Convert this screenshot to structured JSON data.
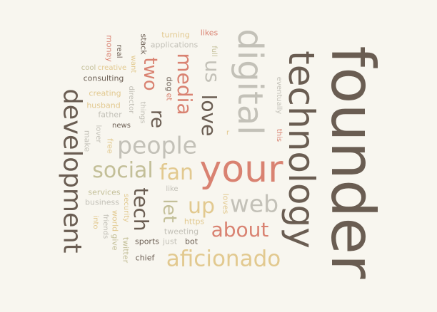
{
  "palette": {
    "background": "#f8f6ef",
    "dark": "#6a5d52",
    "brown": "#8a7d70",
    "grey": "#c3c1b8",
    "salmon": "#d98271",
    "gold": "#e2c98f",
    "olive": "#c3bf98"
  },
  "words": [
    {
      "id": "founder",
      "text": "founder",
      "color": "#6a5d52"
    },
    {
      "id": "technology",
      "text": "technology",
      "color": "#6a5d52"
    },
    {
      "id": "digital",
      "text": "digital",
      "color": "#c3c1b8"
    },
    {
      "id": "development",
      "text": "development",
      "color": "#6a5d52"
    },
    {
      "id": "your",
      "text": "your",
      "color": "#d98271"
    },
    {
      "id": "aficionado",
      "text": "aficionado",
      "color": "#e2c98f"
    },
    {
      "id": "people",
      "text": "people",
      "color": "#c3c1b8"
    },
    {
      "id": "social",
      "text": "social",
      "color": "#c3bf98"
    },
    {
      "id": "fan",
      "text": "fan",
      "color": "#e2c98f"
    },
    {
      "id": "web",
      "text": "web",
      "color": "#c3c1b8"
    },
    {
      "id": "about",
      "text": "about",
      "color": "#d98271"
    },
    {
      "id": "up",
      "text": "up",
      "color": "#e2c98f"
    },
    {
      "id": "tech",
      "text": "tech",
      "color": "#6a5d52"
    },
    {
      "id": "let",
      "text": "let",
      "color": "#c3bf98"
    },
    {
      "id": "media",
      "text": "media",
      "color": "#d98271"
    },
    {
      "id": "two",
      "text": "two",
      "color": "#d98271"
    },
    {
      "id": "re",
      "text": "re",
      "color": "#6a5d52"
    },
    {
      "id": "love",
      "text": "love",
      "color": "#6a5d52"
    },
    {
      "id": "us",
      "text": "us",
      "color": "#c3c1b8"
    },
    {
      "id": "turning",
      "text": "turning",
      "color": "#e2c98f"
    },
    {
      "id": "likes",
      "text": "likes",
      "color": "#d98271"
    },
    {
      "id": "applications",
      "text": "applications",
      "color": "#c3c1b8"
    },
    {
      "id": "full",
      "text": "full",
      "color": "#c3bf98"
    },
    {
      "id": "stack",
      "text": "stack",
      "color": "#6a5d52"
    },
    {
      "id": "real",
      "text": "real",
      "color": "#6a5d52"
    },
    {
      "id": "want",
      "text": "want",
      "color": "#e2c98f"
    },
    {
      "id": "money",
      "text": "money",
      "color": "#d98271"
    },
    {
      "id": "creative",
      "text": "creative",
      "color": "#e2c98f"
    },
    {
      "id": "cool",
      "text": "cool",
      "color": "#c3bf98"
    },
    {
      "id": "consulting",
      "text": "consulting",
      "color": "#6a5d52"
    },
    {
      "id": "creating",
      "text": "creating",
      "color": "#e2c98f"
    },
    {
      "id": "director",
      "text": "director",
      "color": "#c3c1b8"
    },
    {
      "id": "things",
      "text": "things",
      "color": "#c3c1b8"
    },
    {
      "id": "dog",
      "text": "dog",
      "color": "#6a5d52"
    },
    {
      "id": "et",
      "text": "et",
      "color": "#d98271"
    },
    {
      "id": "husband",
      "text": "husband",
      "color": "#e2c98f"
    },
    {
      "id": "father",
      "text": "father",
      "color": "#c3c1b8"
    },
    {
      "id": "news",
      "text": "news",
      "color": "#6a5d52"
    },
    {
      "id": "lover",
      "text": "lover",
      "color": "#c3c1b8"
    },
    {
      "id": "make",
      "text": "make",
      "color": "#c3c1b8"
    },
    {
      "id": "free",
      "text": "free",
      "color": "#e2c98f"
    },
    {
      "id": "eventually",
      "text": "eventually",
      "color": "#c3c1b8"
    },
    {
      "id": "this",
      "text": "this",
      "color": "#d98271"
    },
    {
      "id": "r",
      "text": "r",
      "color": "#e2c98f"
    },
    {
      "id": "like",
      "text": "like",
      "color": "#c3c1b8"
    },
    {
      "id": "services",
      "text": "services",
      "color": "#c3bf98"
    },
    {
      "id": "business",
      "text": "business",
      "color": "#c3c1b8"
    },
    {
      "id": "security",
      "text": "security",
      "color": "#e2c98f"
    },
    {
      "id": "world",
      "text": "world",
      "color": "#e2c98f"
    },
    {
      "id": "friends",
      "text": "friends",
      "color": "#c3c1b8"
    },
    {
      "id": "give",
      "text": "give",
      "color": "#c3bf98"
    },
    {
      "id": "into",
      "text": "into",
      "color": "#e2c98f"
    },
    {
      "id": "twitter",
      "text": "twitter",
      "color": "#c3bf98"
    },
    {
      "id": "loves",
      "text": "loves",
      "color": "#e2c98f"
    },
    {
      "id": "https",
      "text": "https",
      "color": "#e2c98f"
    },
    {
      "id": "tweeting",
      "text": "tweeting",
      "color": "#c3c1b8"
    },
    {
      "id": "sports",
      "text": "sports",
      "color": "#6a5d52"
    },
    {
      "id": "just",
      "text": "just",
      "color": "#c3c1b8"
    },
    {
      "id": "bot",
      "text": "bot",
      "color": "#6a5d52"
    },
    {
      "id": "chief",
      "text": "chief",
      "color": "#6a5d52"
    }
  ]
}
